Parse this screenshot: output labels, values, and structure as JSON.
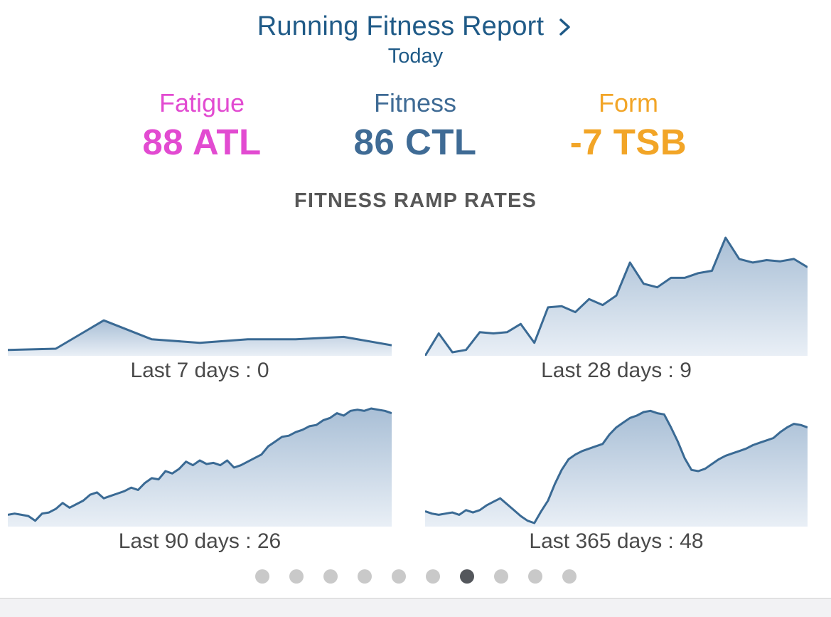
{
  "header": {
    "title": "Running Fitness Report",
    "subtitle": "Today",
    "chevron_icon": "chevron-right-icon"
  },
  "metrics": [
    {
      "name": "Fatigue",
      "value": "88 ATL",
      "color": "#e24bd1"
    },
    {
      "name": "Fitness",
      "value": "86 CTL",
      "color": "#3f6b95"
    },
    {
      "name": "Form",
      "value": "-7 TSB",
      "color": "#f2a527"
    }
  ],
  "section_title": "FITNESS RAMP RATES",
  "colors": {
    "line": "#3a6a94",
    "fill_top": "#a9bfd6",
    "fill_bottom": "#e9eff6",
    "dot_inactive": "#c9c9c9",
    "dot_active": "#54575c"
  },
  "pager": {
    "count": 10,
    "active_index": 6
  },
  "chart_data": [
    {
      "type": "area",
      "label": "Last 7 days : 0",
      "ylim": [
        0,
        100
      ],
      "values": [
        5,
        6,
        30,
        14,
        11,
        14,
        14,
        16,
        9
      ]
    },
    {
      "type": "area",
      "label": "Last 28 days : 9",
      "ylim": [
        0,
        100
      ],
      "values": [
        0,
        19,
        3,
        5,
        20,
        19,
        20,
        27,
        11,
        41,
        42,
        37,
        48,
        43,
        51,
        79,
        61,
        58,
        66,
        66,
        70,
        72,
        100,
        82,
        79,
        81,
        80,
        82,
        75
      ]
    },
    {
      "type": "area",
      "label": "Last 90 days : 26",
      "ylim": [
        0,
        100
      ],
      "values": [
        10,
        11,
        10,
        9,
        5,
        11,
        12,
        15,
        20,
        16,
        19,
        22,
        27,
        29,
        24,
        26,
        28,
        30,
        33,
        31,
        37,
        41,
        40,
        47,
        45,
        49,
        55,
        52,
        56,
        53,
        54,
        52,
        56,
        50,
        52,
        55,
        58,
        61,
        68,
        72,
        76,
        77,
        80,
        82,
        85,
        86,
        90,
        92,
        96,
        94,
        98,
        99,
        98,
        100,
        99,
        98,
        96
      ]
    },
    {
      "type": "area",
      "label": "Last 365 days : 48",
      "ylim": [
        0,
        100
      ],
      "values": [
        13,
        11,
        10,
        11,
        12,
        10,
        14,
        12,
        14,
        18,
        21,
        24,
        19,
        14,
        9,
        5,
        3,
        13,
        22,
        36,
        48,
        57,
        61,
        64,
        66,
        68,
        70,
        78,
        84,
        88,
        92,
        94,
        97,
        98,
        96,
        95,
        84,
        72,
        58,
        48,
        47,
        49,
        53,
        57,
        60,
        62,
        64,
        66,
        69,
        71,
        73,
        75,
        80,
        84,
        87,
        86,
        84
      ]
    }
  ]
}
